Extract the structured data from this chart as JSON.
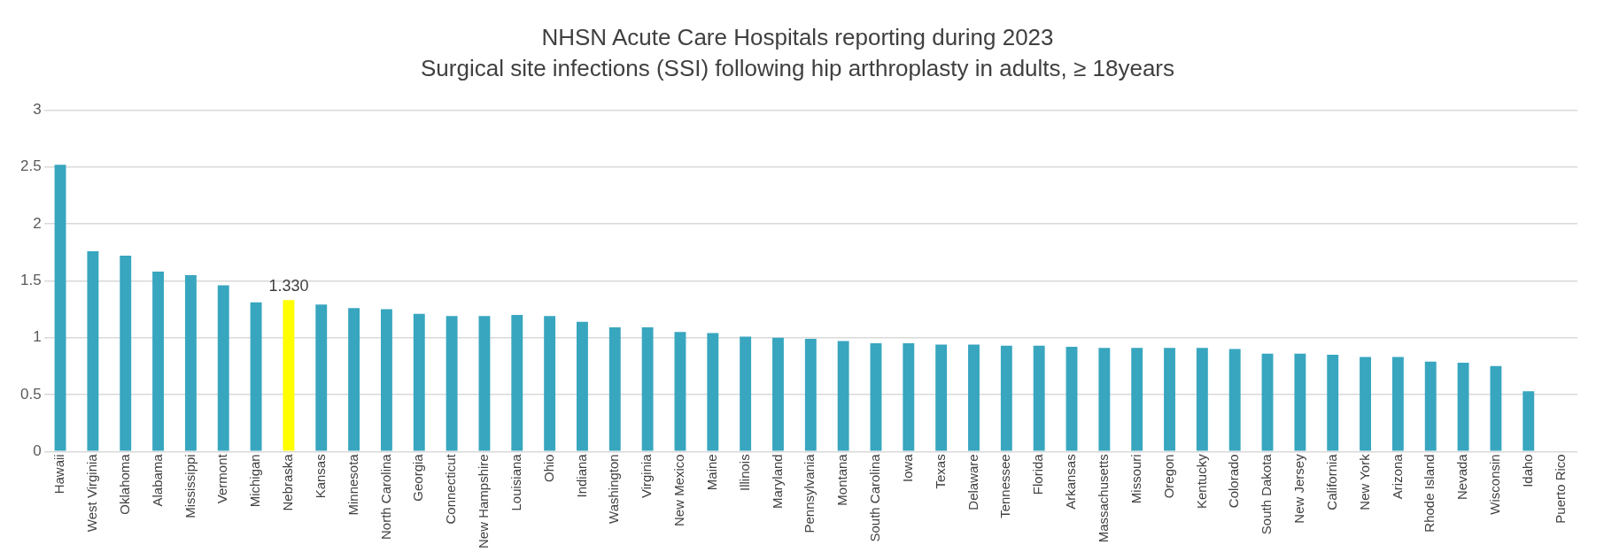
{
  "chart_data": {
    "type": "bar",
    "title": "NHSN Acute Care Hospitals reporting during 2023",
    "subtitle": "Surgical site infections (SSI) following hip arthroplasty in adults, ≥ 18years",
    "categories": [
      "Hawaii",
      "West Virginia",
      "Oklahoma",
      "Alabama",
      "Mississippi",
      "Vermont",
      "Michigan",
      "Nebraska",
      "Kansas",
      "Minnesota",
      "North Carolina",
      "Georgia",
      "Connecticut",
      "New Hampshire",
      "Louisiana",
      "Ohio",
      "Indiana",
      "Washington",
      "Virginia",
      "New Mexico",
      "Maine",
      "Illinois",
      "Maryland",
      "Pennsylvania",
      "Montana",
      "South Carolina",
      "Iowa",
      "Texas",
      "Delaware",
      "Tennessee",
      "Florida",
      "Arkansas",
      "Massachusetts",
      "Missouri",
      "Oregon",
      "Kentucky",
      "Colorado",
      "South Dakota",
      "New Jersey",
      "California",
      "New York",
      "Arizona",
      "Rhode Island",
      "Nevada",
      "Wisconsin",
      "Idaho",
      "Puerto Rico"
    ],
    "values": [
      2.52,
      1.76,
      1.72,
      1.58,
      1.55,
      1.46,
      1.31,
      1.33,
      1.29,
      1.26,
      1.25,
      1.21,
      1.19,
      1.19,
      1.2,
      1.19,
      1.14,
      1.09,
      1.09,
      1.05,
      1.04,
      1.01,
      1.0,
      0.99,
      0.97,
      0.95,
      0.95,
      0.94,
      0.94,
      0.93,
      0.93,
      0.92,
      0.91,
      0.91,
      0.91,
      0.91,
      0.9,
      0.86,
      0.86,
      0.85,
      0.83,
      0.83,
      0.79,
      0.78,
      0.75,
      0.53,
      null
    ],
    "colors": [
      "#38a6bf",
      "#38a6bf",
      "#38a6bf",
      "#38a6bf",
      "#38a6bf",
      "#38a6bf",
      "#38a6bf",
      "#ffff00",
      "#38a6bf",
      "#38a6bf",
      "#38a6bf",
      "#38a6bf",
      "#38a6bf",
      "#38a6bf",
      "#38a6bf",
      "#38a6bf",
      "#38a6bf",
      "#38a6bf",
      "#38a6bf",
      "#38a6bf",
      "#38a6bf",
      "#38a6bf",
      "#38a6bf",
      "#38a6bf",
      "#38a6bf",
      "#38a6bf",
      "#38a6bf",
      "#38a6bf",
      "#38a6bf",
      "#38a6bf",
      "#38a6bf",
      "#38a6bf",
      "#38a6bf",
      "#38a6bf",
      "#38a6bf",
      "#38a6bf",
      "#38a6bf",
      "#38a6bf",
      "#38a6bf",
      "#38a6bf",
      "#38a6bf",
      "#38a6bf",
      "#38a6bf",
      "#38a6bf",
      "#38a6bf",
      "#38a6bf",
      "#38a6bf"
    ],
    "value_labels": [
      null,
      null,
      null,
      null,
      null,
      null,
      null,
      "1.330",
      null,
      null,
      null,
      null,
      null,
      null,
      null,
      null,
      null,
      null,
      null,
      null,
      null,
      null,
      null,
      null,
      null,
      null,
      null,
      null,
      null,
      null,
      null,
      null,
      null,
      null,
      null,
      null,
      null,
      null,
      null,
      null,
      null,
      null,
      null,
      null,
      null,
      null,
      null
    ],
    "ylim": [
      0,
      3
    ],
    "yticks": [
      0,
      0.5,
      1,
      1.5,
      2,
      2.5,
      3
    ],
    "grid": "y",
    "legend": false
  }
}
